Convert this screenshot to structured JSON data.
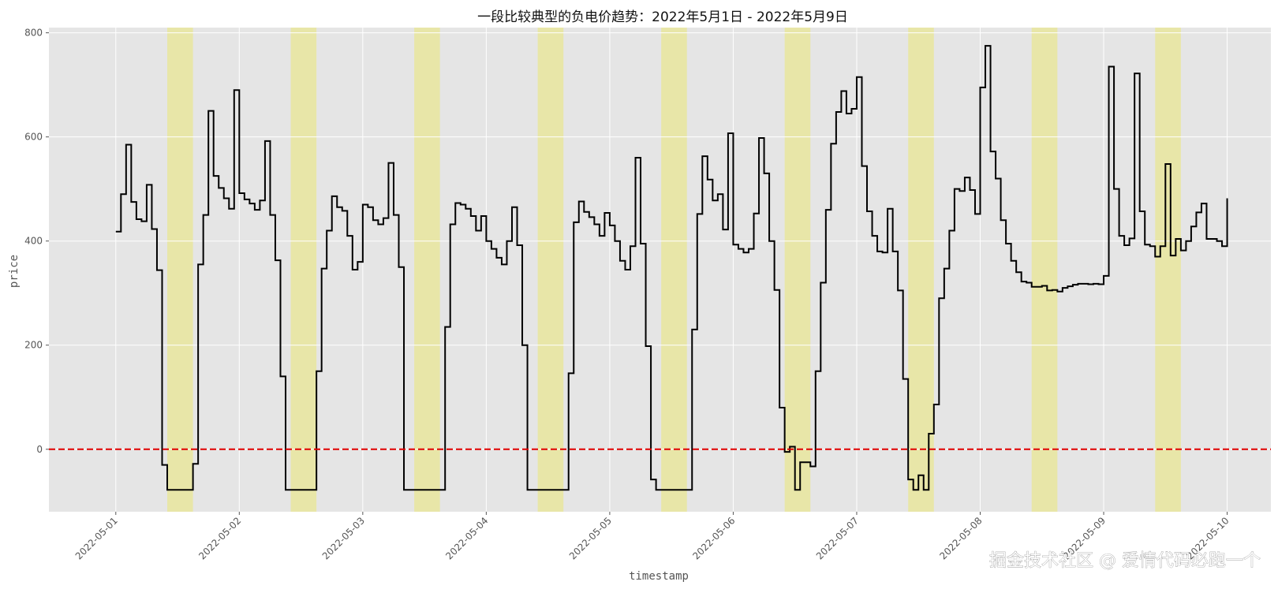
{
  "chart_data": {
    "type": "line",
    "title": "一段比较典型的负电价趋势：2022年5月1日 - 2022年5月9日",
    "xlabel": "timestamp",
    "ylabel": "price",
    "x_range": [
      "2022-04-30 11:00",
      "2022-05-10 08:30"
    ],
    "ylim": [
      -120,
      810
    ],
    "yticks": [
      0,
      200,
      400,
      600,
      800
    ],
    "xticks": [
      "2022-05-01",
      "2022-05-02",
      "2022-05-03",
      "2022-05-04",
      "2022-05-05",
      "2022-05-06",
      "2022-05-07",
      "2022-05-08",
      "2022-05-09",
      "2022-05-10"
    ],
    "grid": true,
    "step_hours": 1,
    "reference_line": {
      "y": 0,
      "color": "#e00000",
      "style": "dashed"
    },
    "highlight_color": "#e8e6a8",
    "highlights": [
      {
        "start": "2022-05-01 10:00",
        "end": "2022-05-01 15:00"
      },
      {
        "start": "2022-05-02 10:00",
        "end": "2022-05-02 15:00"
      },
      {
        "start": "2022-05-03 10:00",
        "end": "2022-05-03 15:00"
      },
      {
        "start": "2022-05-04 10:00",
        "end": "2022-05-04 15:00"
      },
      {
        "start": "2022-05-05 10:00",
        "end": "2022-05-05 15:00"
      },
      {
        "start": "2022-05-06 10:00",
        "end": "2022-05-06 15:00"
      },
      {
        "start": "2022-05-07 10:00",
        "end": "2022-05-07 15:00"
      },
      {
        "start": "2022-05-08 10:00",
        "end": "2022-05-08 15:00"
      },
      {
        "start": "2022-05-09 10:00",
        "end": "2022-05-09 15:00"
      }
    ],
    "series": [
      {
        "color": "#000000",
        "start": "2022-05-01 00:00",
        "values": [
          418,
          490,
          585,
          475,
          442,
          438,
          508,
          423,
          344,
          -30,
          -78,
          -78,
          -78,
          -78,
          -78,
          -28,
          355,
          450,
          650,
          525,
          502,
          482,
          462,
          690,
          492,
          480,
          472,
          460,
          478,
          592,
          450,
          363,
          140,
          -78,
          -78,
          -78,
          -78,
          -78,
          -78,
          150,
          347,
          420,
          486,
          465,
          458,
          410,
          345,
          360,
          470,
          465,
          440,
          432,
          444,
          550,
          450,
          350,
          -78,
          -78,
          -78,
          -78,
          -78,
          -78,
          -78,
          -78,
          235,
          432,
          473,
          470,
          462,
          448,
          420,
          448,
          400,
          385,
          368,
          355,
          400,
          465,
          392,
          200,
          -78,
          -78,
          -78,
          -78,
          -78,
          -78,
          -78,
          -78,
          146,
          436,
          476,
          456,
          446,
          432,
          410,
          454,
          430,
          400,
          362,
          345,
          390,
          560,
          395,
          198,
          -58,
          -78,
          -78,
          -78,
          -78,
          -78,
          -78,
          -78,
          230,
          452,
          563,
          518,
          478,
          490,
          422,
          607,
          393,
          385,
          378,
          385,
          453,
          598,
          530,
          400,
          306,
          80,
          -5,
          5,
          -78,
          -25,
          -25,
          -33,
          150,
          320,
          460,
          587,
          648,
          688,
          645,
          654,
          715,
          544,
          457,
          410,
          380,
          378,
          462,
          380,
          305,
          135,
          -58,
          -78,
          -50,
          -78,
          30,
          86,
          290,
          347,
          420,
          500,
          496,
          522,
          498,
          452,
          695,
          775,
          572,
          520,
          440,
          395,
          362,
          340,
          322,
          320,
          312,
          312,
          314,
          305,
          306,
          303,
          310,
          313,
          316,
          318,
          318,
          317,
          318,
          317,
          333,
          735,
          500,
          410,
          392,
          405,
          722,
          457,
          393,
          390,
          370,
          390,
          548,
          372,
          404,
          382,
          400,
          428,
          455,
          472,
          404,
          404,
          400,
          390,
          482
        ]
      }
    ]
  },
  "watermark": "掘金技术社区 @ 爱情代码必跑一个"
}
